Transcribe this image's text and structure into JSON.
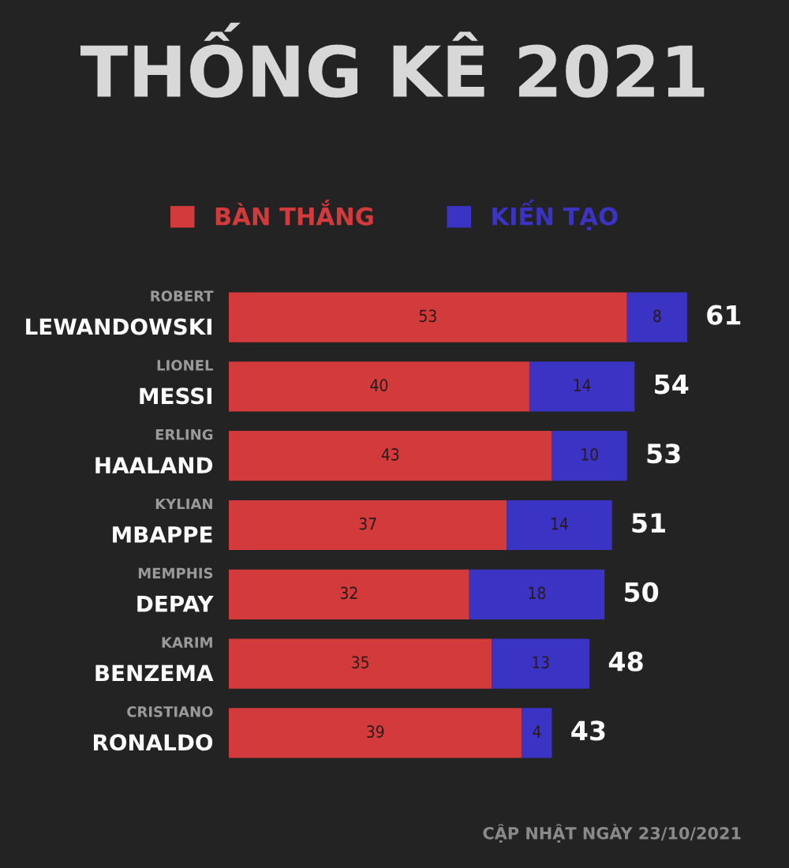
{
  "chart_data": {
    "type": "bar",
    "orientation": "horizontal",
    "stacked": true,
    "title": "THỐNG KÊ 2021",
    "categories": [
      "ROBERT\nLEWANDOWSKI",
      "LIONEL\nMESSI",
      "ERLING\nHAALAND",
      "KYLIAN\nMBAPPE",
      "MEMPHIS\nDEPAY",
      "KARIM\nBENZEMA",
      "CRISTIANO\nRONALDO"
    ],
    "series": [
      {
        "name": "BÀN THẮNG",
        "color": "#d33a3b",
        "values": [
          53,
          40,
          43,
          37,
          32,
          35,
          39
        ]
      },
      {
        "name": "KIẾN TẠO",
        "color": "#3a33c4",
        "values": [
          8,
          14,
          10,
          14,
          18,
          13,
          4
        ]
      }
    ],
    "data_labels": true,
    "totals": [
      "61",
      "54",
      "53",
      "51",
      "50",
      "48",
      "43"
    ],
    "legend": "top",
    "annotations": [
      "CẬP NHẬT NGÀY 23/10/2021"
    ]
  }
}
